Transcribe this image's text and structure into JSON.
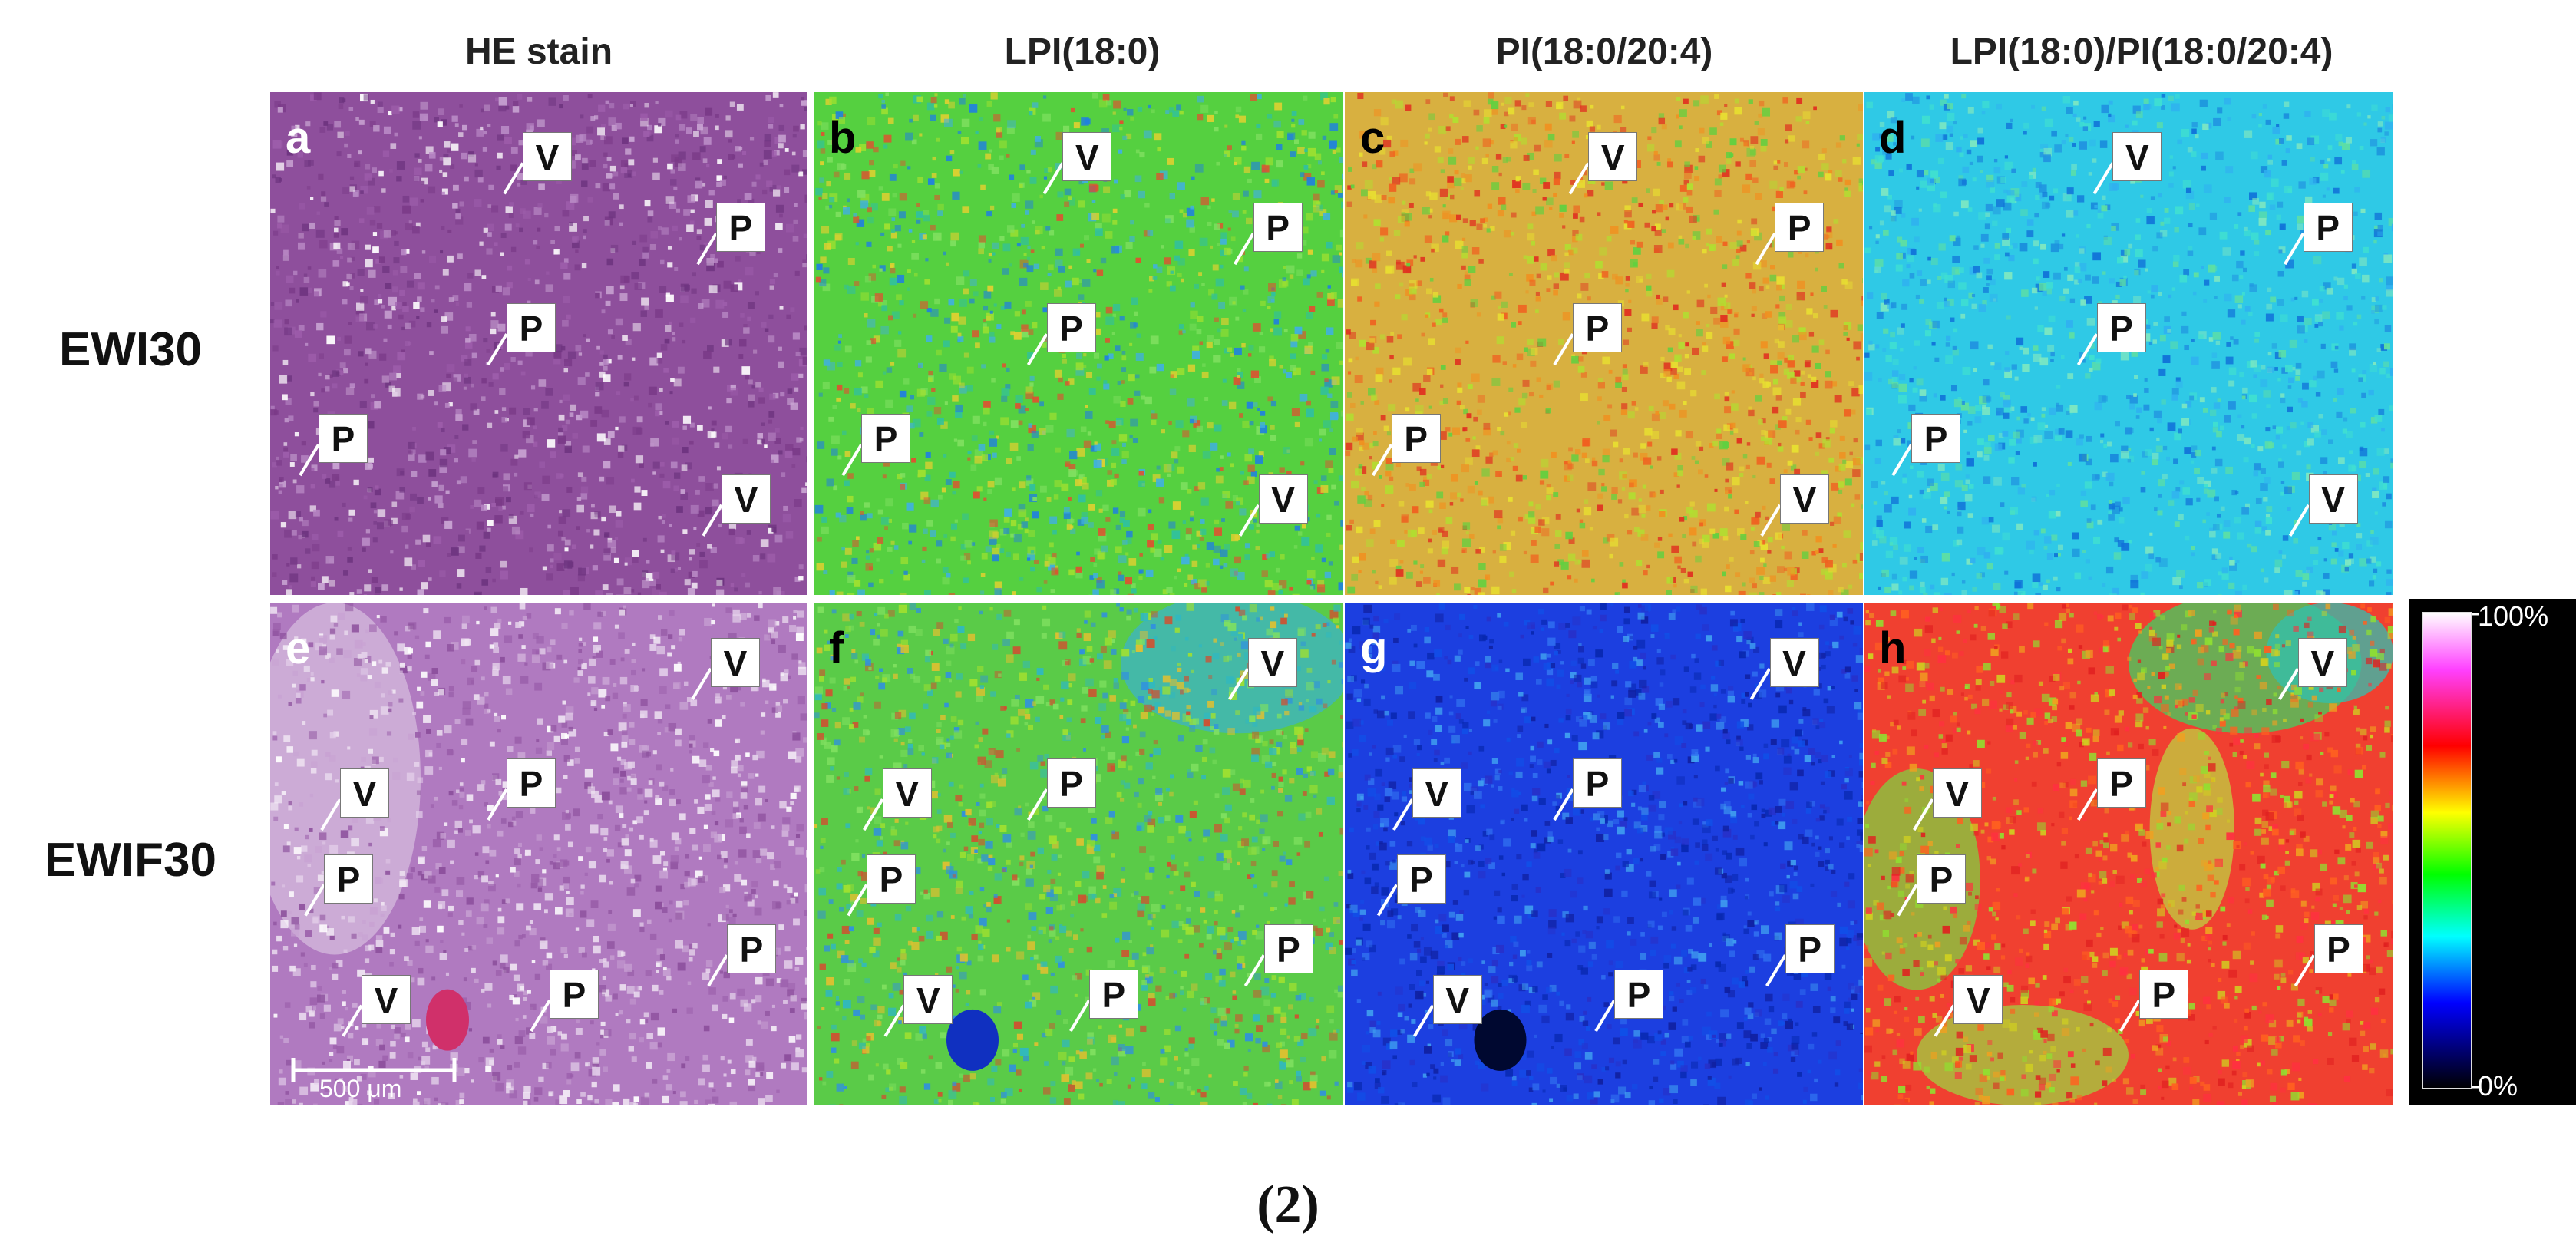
{
  "columns": [
    "HE stain",
    "LPI(18:0)",
    "PI(18:0/20:4)",
    "LPI(18:0)/PI(18:0/20:4)"
  ],
  "rows": [
    "EWI30",
    "EWIF30"
  ],
  "panels": [
    {
      "letter": "a",
      "style": "he1",
      "tags": [
        "V",
        "P",
        "P",
        "P",
        "V"
      ]
    },
    {
      "letter": "b",
      "style": "green",
      "tags": [
        "V",
        "P",
        "P",
        "P",
        "V"
      ]
    },
    {
      "letter": "c",
      "style": "orange",
      "tags": [
        "V",
        "P",
        "P",
        "P",
        "V"
      ]
    },
    {
      "letter": "d",
      "style": "cyan",
      "tags": [
        "V",
        "P",
        "P",
        "P",
        "V"
      ]
    },
    {
      "letter": "e",
      "style": "he2",
      "tags": [
        "V",
        "V",
        "P",
        "P",
        "P",
        "V",
        "P"
      ]
    },
    {
      "letter": "f",
      "style": "green2",
      "tags": [
        "V",
        "V",
        "P",
        "P",
        "P",
        "V",
        "P"
      ]
    },
    {
      "letter": "g",
      "style": "blue",
      "tags": [
        "V",
        "V",
        "P",
        "P",
        "P",
        "V",
        "P"
      ]
    },
    {
      "letter": "h",
      "style": "red",
      "tags": [
        "V",
        "V",
        "P",
        "P",
        "P",
        "V",
        "P"
      ]
    }
  ],
  "colorbar": {
    "max_label": "100%",
    "min_label": "0%"
  },
  "scale_bar": {
    "label": "500 μm"
  },
  "caption": "(2)",
  "colors": {
    "he": "#8e4f9c",
    "he_light": "#c39bd0",
    "lpi": "#55d040",
    "pi_top": "#e0a838",
    "ratio_top": "#2fc9e6",
    "pi_bottom": "#1c3fe0",
    "ratio_bottom": "#f23a28"
  }
}
